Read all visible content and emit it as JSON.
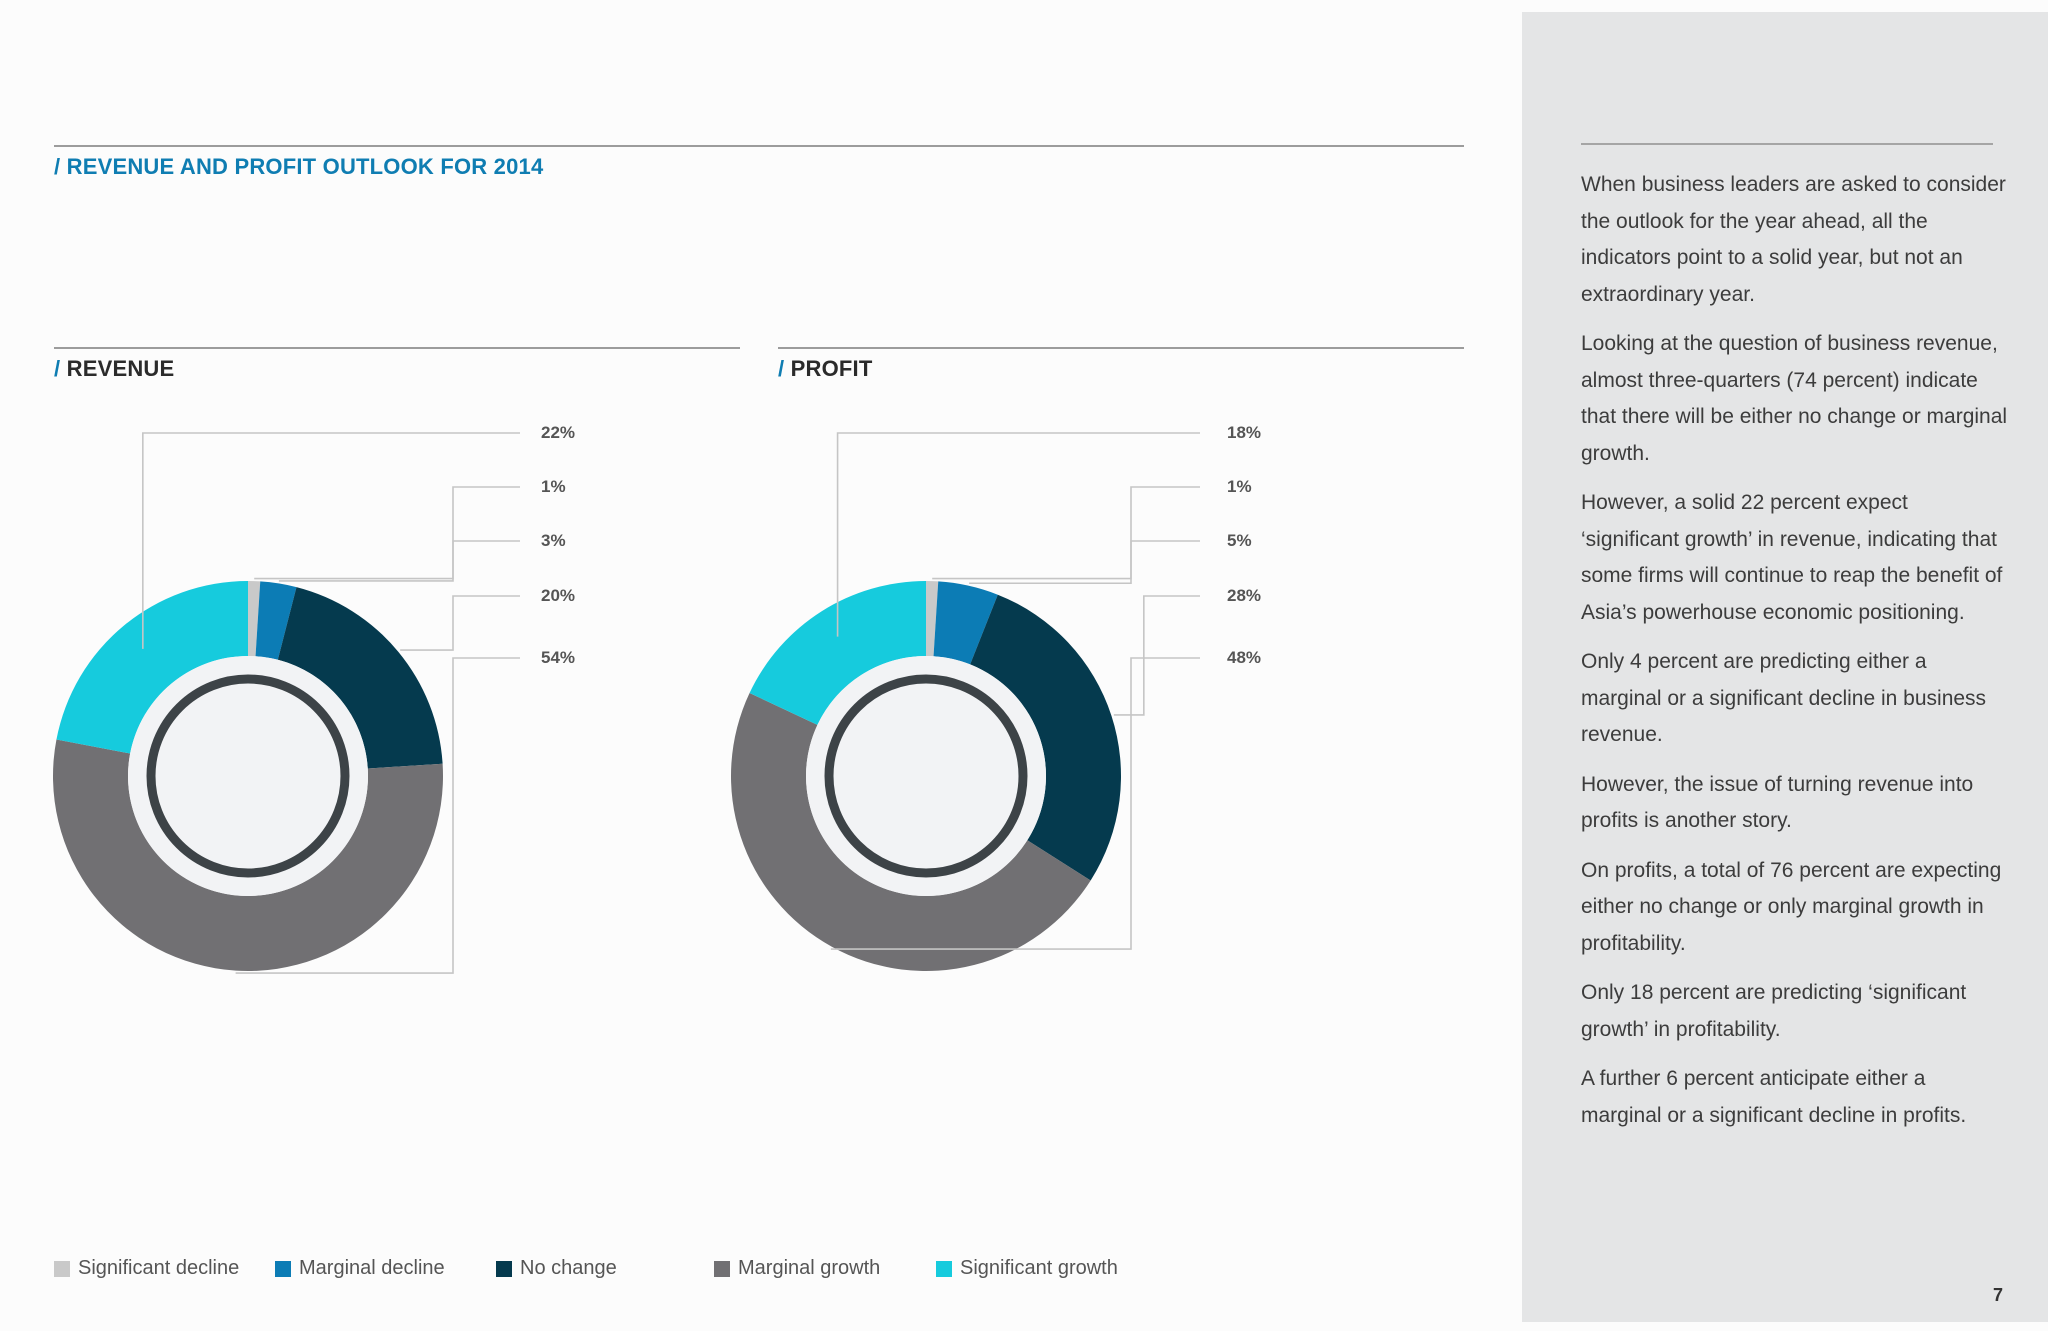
{
  "page": {
    "title": "/ REVENUE AND PROFIT OUTLOOK FOR 2014",
    "page_number": "7"
  },
  "colors": {
    "significant_decline": "#c9c9c9",
    "marginal_decline": "#0c7cb5",
    "no_change": "#053a4e",
    "marginal_growth": "#717073",
    "significant_growth": "#16cbdd",
    "accent": "#0f7db2"
  },
  "legend": [
    {
      "label": "Significant decline",
      "color": "#c9c9c9"
    },
    {
      "label": "Marginal decline",
      "color": "#0c7cb5"
    },
    {
      "label": "No change",
      "color": "#053a4e"
    },
    {
      "label": "Marginal growth",
      "color": "#717073"
    },
    {
      "label": "Significant growth",
      "color": "#16cbdd"
    }
  ],
  "chart_data": [
    {
      "type": "pie",
      "title": "REVENUE",
      "categories": [
        "Significant decline",
        "Marginal decline",
        "No change",
        "Marginal growth",
        "Significant growth"
      ],
      "values": [
        1,
        3,
        20,
        54,
        22
      ],
      "data_labels": [
        "1%",
        "3%",
        "20%",
        "54%",
        "22%"
      ],
      "label_order_top_to_bottom": [
        "22%",
        "1%",
        "3%",
        "20%",
        "54%"
      ],
      "legend_position": "bottom"
    },
    {
      "type": "pie",
      "title": "PROFIT",
      "categories": [
        "Significant decline",
        "Marginal decline",
        "No change",
        "Marginal growth",
        "Significant growth"
      ],
      "values": [
        1,
        5,
        28,
        48,
        18
      ],
      "data_labels": [
        "1%",
        "5%",
        "28%",
        "48%",
        "18%"
      ],
      "label_order_top_to_bottom": [
        "18%",
        "1%",
        "5%",
        "28%",
        "48%"
      ],
      "legend_position": "bottom"
    }
  ],
  "sidebar": {
    "paragraphs": [
      "When business leaders are asked to consider the outlook for the year ahead, all the indicators point to a solid year, but not an extraordinary year.",
      "Looking at the question of business revenue, almost three-quarters (74 percent) indicate that there will be either no change or marginal growth.",
      "However, a solid 22 percent expect ‘significant growth’ in revenue, indicating that some firms will continue to reap the benefit of Asia’s powerhouse economic positioning.",
      "Only 4 percent are predicting either a marginal or a significant decline in business revenue.",
      "However, the issue of turning revenue into profits is another story.",
      "On profits, a total of 76 percent are expecting either no change or only marginal growth in profitability.",
      "Only 18 percent are predicting ‘significant growth’ in profitability.",
      "A further 6 percent anticipate either a marginal or a significant decline in profits."
    ]
  }
}
